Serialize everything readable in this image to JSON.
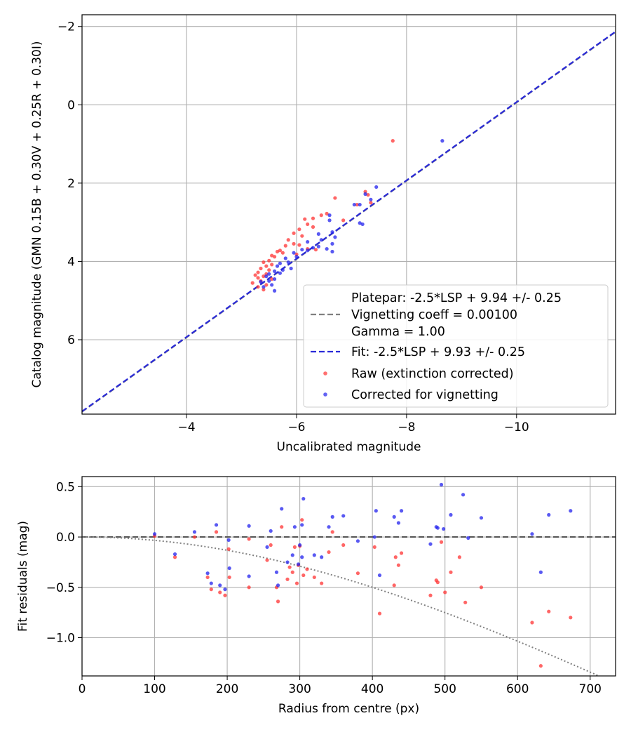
{
  "chart_data": [
    {
      "type": "scatter",
      "xlabel": "Uncalibrated magnitude",
      "ylabel": "Catalog magnitude (GMN 0.15B + 0.30V + 0.25R + 0.30I)",
      "xlim": [
        -2.1,
        -11.8
      ],
      "ylim": [
        7.9,
        -2.3
      ],
      "x_inverted": true,
      "y_inverted": true,
      "grid": true,
      "xticks": [
        -4,
        -6,
        -8,
        -10
      ],
      "xtick_labels": [
        "−4",
        "−6",
        "−8",
        "−10"
      ],
      "yticks": [
        -2,
        0,
        2,
        4,
        6
      ],
      "ytick_labels": [
        "−2",
        "0",
        "2",
        "4",
        "6"
      ],
      "legend_position": "lower-right",
      "legend": {
        "platepar_lines": [
          "Platepar: -2.5*LSP + 9.94 +/- 0.25",
          "Vignetting coeff = 0.00100",
          "Gamma = 1.00"
        ],
        "fit": "Fit: -2.5*LSP + 9.93 +/- 0.25",
        "raw": "Raw (extinction corrected)",
        "corrected": "Corrected for vignetting"
      },
      "lines": [
        {
          "name": "Platepar",
          "style": "dashed",
          "color": "#808080",
          "slope": 1.0,
          "intercept": 9.94
        },
        {
          "name": "Fit",
          "style": "dashed",
          "color": "#2a2ad8",
          "slope": 1.0,
          "intercept": 9.93
        }
      ],
      "series": [
        {
          "name": "Raw (extinction corrected)",
          "color": "#ff3333",
          "points": [
            [
              -7.75,
              0.92
            ],
            [
              -7.25,
              2.22
            ],
            [
              -7.3,
              2.3
            ],
            [
              -7.35,
              2.5
            ],
            [
              -7.1,
              2.55
            ],
            [
              -6.7,
              2.38
            ],
            [
              -6.55,
              2.78
            ],
            [
              -6.45,
              2.82
            ],
            [
              -6.3,
              2.9
            ],
            [
              -6.15,
              2.92
            ],
            [
              -6.85,
              2.95
            ],
            [
              -6.2,
              3.05
            ],
            [
              -6.3,
              3.12
            ],
            [
              -6.05,
              3.18
            ],
            [
              -5.95,
              3.28
            ],
            [
              -6.1,
              3.35
            ],
            [
              -5.85,
              3.45
            ],
            [
              -5.95,
              3.55
            ],
            [
              -6.05,
              3.58
            ],
            [
              -5.8,
              3.6
            ],
            [
              -6.2,
              3.68
            ],
            [
              -6.35,
              3.7
            ],
            [
              -5.7,
              3.72
            ],
            [
              -5.65,
              3.75
            ],
            [
              -5.75,
              3.78
            ],
            [
              -6.0,
              3.82
            ],
            [
              -5.55,
              3.85
            ],
            [
              -5.6,
              3.88
            ],
            [
              -5.5,
              3.98
            ],
            [
              -5.4,
              4.02
            ],
            [
              -5.55,
              4.08
            ],
            [
              -5.45,
              4.12
            ],
            [
              -5.35,
              4.18
            ],
            [
              -5.5,
              4.22
            ],
            [
              -5.3,
              4.28
            ],
            [
              -5.45,
              4.32
            ],
            [
              -5.25,
              4.35
            ],
            [
              -5.4,
              4.38
            ],
            [
              -5.3,
              4.42
            ],
            [
              -5.55,
              4.45
            ],
            [
              -5.35,
              4.5
            ],
            [
              -5.2,
              4.55
            ],
            [
              -5.45,
              4.6
            ],
            [
              -5.3,
              4.65
            ],
            [
              -5.4,
              4.72
            ]
          ]
        },
        {
          "name": "Corrected for vignetting",
          "color": "#2222ee",
          "points": [
            [
              -8.65,
              0.92
            ],
            [
              -7.45,
              2.1
            ],
            [
              -7.25,
              2.28
            ],
            [
              -7.35,
              2.42
            ],
            [
              -7.15,
              2.55
            ],
            [
              -7.05,
              2.55
            ],
            [
              -6.6,
              2.82
            ],
            [
              -6.6,
              2.95
            ],
            [
              -7.2,
              3.05
            ],
            [
              -7.15,
              3.02
            ],
            [
              -6.65,
              3.25
            ],
            [
              -6.4,
              3.3
            ],
            [
              -6.7,
              3.38
            ],
            [
              -6.45,
              3.45
            ],
            [
              -6.2,
              3.5
            ],
            [
              -6.65,
              3.55
            ],
            [
              -6.4,
              3.62
            ],
            [
              -6.3,
              3.65
            ],
            [
              -6.55,
              3.68
            ],
            [
              -6.65,
              3.75
            ],
            [
              -6.1,
              3.7
            ],
            [
              -6.2,
              3.72
            ],
            [
              -5.95,
              3.78
            ],
            [
              -6.0,
              3.88
            ],
            [
              -5.8,
              3.92
            ],
            [
              -5.85,
              4.02
            ],
            [
              -5.7,
              4.05
            ],
            [
              -5.65,
              4.12
            ],
            [
              -5.9,
              4.18
            ],
            [
              -5.75,
              4.22
            ],
            [
              -5.6,
              4.25
            ],
            [
              -5.7,
              4.3
            ],
            [
              -5.5,
              4.32
            ],
            [
              -5.45,
              4.38
            ],
            [
              -5.6,
              4.45
            ],
            [
              -5.5,
              4.5
            ],
            [
              -5.35,
              4.52
            ],
            [
              -5.55,
              4.6
            ],
            [
              -5.4,
              4.65
            ],
            [
              -5.6,
              4.75
            ]
          ]
        }
      ]
    },
    {
      "type": "scatter",
      "xlabel": "Radius from centre (px)",
      "ylabel": "Fit residuals (mag)",
      "xlim": [
        0,
        735
      ],
      "ylim": [
        -1.38,
        0.6
      ],
      "grid": true,
      "xticks": [
        0,
        100,
        200,
        300,
        400,
        500,
        600,
        700
      ],
      "xtick_labels": [
        "0",
        "100",
        "200",
        "300",
        "400",
        "500",
        "600",
        "700"
      ],
      "yticks": [
        0.5,
        0.0,
        -0.5,
        -1.0
      ],
      "ytick_labels": [
        "0.5",
        "0.0",
        "−0.5",
        "−1.0"
      ],
      "lines": [
        {
          "name": "zero",
          "style": "dashed",
          "color": "#555555",
          "y": 0.0
        },
        {
          "name": "vignetting model",
          "style": "dotted",
          "color": "#808080",
          "coeff": 0.001
        }
      ],
      "series": [
        {
          "name": "Raw (extinction corrected)",
          "color": "#ff3333",
          "points": [
            [
              100,
              0.01
            ],
            [
              128,
              -0.2
            ],
            [
              155,
              0.0
            ],
            [
              173,
              -0.4
            ],
            [
              178,
              -0.52
            ],
            [
              185,
              0.05
            ],
            [
              190,
              -0.55
            ],
            [
              197,
              -0.58
            ],
            [
              202,
              -0.12
            ],
            [
              203,
              -0.4
            ],
            [
              230,
              -0.5
            ],
            [
              230,
              -0.02
            ],
            [
              255,
              -0.23
            ],
            [
              260,
              -0.08
            ],
            [
              268,
              -0.5
            ],
            [
              270,
              -0.64
            ],
            [
              275,
              0.1
            ],
            [
              283,
              -0.42
            ],
            [
              286,
              -0.3
            ],
            [
              290,
              -0.35
            ],
            [
              293,
              -0.1
            ],
            [
              296,
              -0.46
            ],
            [
              298,
              -0.28
            ],
            [
              300,
              -0.09
            ],
            [
              303,
              0.17
            ],
            [
              305,
              -0.38
            ],
            [
              310,
              -0.32
            ],
            [
              320,
              -0.4
            ],
            [
              330,
              -0.46
            ],
            [
              340,
              -0.15
            ],
            [
              345,
              0.05
            ],
            [
              360,
              -0.08
            ],
            [
              380,
              -0.36
            ],
            [
              403,
              -0.1
            ],
            [
              410,
              -0.76
            ],
            [
              430,
              -0.48
            ],
            [
              432,
              -0.2
            ],
            [
              436,
              -0.28
            ],
            [
              440,
              -0.16
            ],
            [
              480,
              -0.58
            ],
            [
              488,
              -0.43
            ],
            [
              490,
              -0.45
            ],
            [
              495,
              -0.05
            ],
            [
              500,
              -0.55
            ],
            [
              508,
              -0.35
            ],
            [
              520,
              -0.2
            ],
            [
              528,
              -0.65
            ],
            [
              550,
              -0.5
            ],
            [
              620,
              -0.85
            ],
            [
              632,
              -1.28
            ],
            [
              643,
              -0.74
            ],
            [
              673,
              -0.8
            ]
          ]
        },
        {
          "name": "Corrected for vignetting",
          "color": "#2222ee",
          "points": [
            [
              100,
              0.03
            ],
            [
              128,
              -0.17
            ],
            [
              155,
              0.05
            ],
            [
              173,
              -0.36
            ],
            [
              178,
              -0.46
            ],
            [
              185,
              0.12
            ],
            [
              190,
              -0.48
            ],
            [
              197,
              -0.52
            ],
            [
              202,
              -0.03
            ],
            [
              203,
              -0.31
            ],
            [
              230,
              0.11
            ],
            [
              230,
              -0.39
            ],
            [
              255,
              -0.1
            ],
            [
              260,
              0.06
            ],
            [
              268,
              -0.35
            ],
            [
              270,
              -0.48
            ],
            [
              275,
              0.28
            ],
            [
              283,
              -0.25
            ],
            [
              290,
              -0.18
            ],
            [
              293,
              0.1
            ],
            [
              298,
              -0.27
            ],
            [
              300,
              -0.08
            ],
            [
              303,
              -0.2
            ],
            [
              305,
              0.38
            ],
            [
              303,
              0.12
            ],
            [
              320,
              -0.18
            ],
            [
              330,
              -0.2
            ],
            [
              340,
              0.1
            ],
            [
              345,
              0.2
            ],
            [
              360,
              0.21
            ],
            [
              380,
              -0.04
            ],
            [
              403,
              0.0
            ],
            [
              405,
              0.26
            ],
            [
              410,
              -0.38
            ],
            [
              430,
              0.2
            ],
            [
              436,
              0.14
            ],
            [
              440,
              0.26
            ],
            [
              480,
              -0.07
            ],
            [
              488,
              0.1
            ],
            [
              490,
              0.09
            ],
            [
              495,
              0.52
            ],
            [
              498,
              0.08
            ],
            [
              508,
              0.22
            ],
            [
              525,
              0.42
            ],
            [
              532,
              -0.01
            ],
            [
              550,
              0.19
            ],
            [
              620,
              0.03
            ],
            [
              632,
              -0.35
            ],
            [
              643,
              0.22
            ],
            [
              673,
              0.26
            ]
          ]
        }
      ]
    }
  ]
}
